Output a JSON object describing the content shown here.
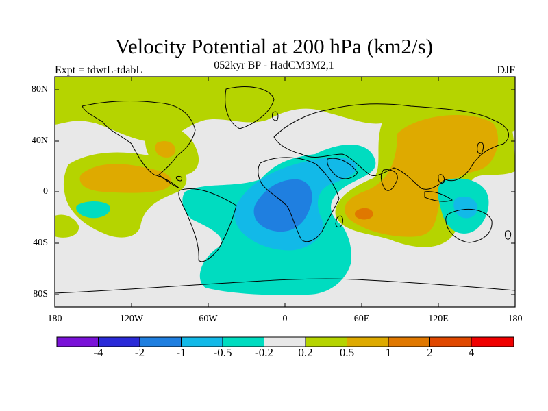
{
  "map": {
    "title": "Velocity Potential at 200 hPa (km2/s)",
    "subtitle": "052kyr BP - HadCM3M2,1",
    "experiment_label": "Expt = tdwtL-tdabL",
    "season_label": "DJF",
    "projection": "cylindrical equidistant",
    "extent": {
      "lon_min": -180,
      "lon_max": 180,
      "lat_min": -90,
      "lat_max": 90
    },
    "lat_ticks": [
      "80N",
      "40N",
      "0",
      "40S",
      "80S"
    ],
    "lon_ticks": [
      "180",
      "120W",
      "60W",
      "0",
      "60E",
      "120E",
      "180"
    ]
  },
  "colorbar": {
    "colors": [
      "#7a12d8",
      "#2a2ad8",
      "#1f7fe0",
      "#12b9e8",
      "#00dcc0",
      "#e8e8e8",
      "#b5d400",
      "#deaa00",
      "#e07800",
      "#e04800",
      "#f00000"
    ],
    "labels": [
      "-4",
      "-2",
      "-1",
      "-0.5",
      "-0.2",
      "0.2",
      "0.5",
      "1",
      "2",
      "4"
    ]
  },
  "palette": {
    "neutral": "#e8e8e8",
    "weak_pos": "#b5d400",
    "mod_pos": "#deaa00",
    "strong_pos": "#e07800",
    "weak_neg": "#00dcc0",
    "mod_neg": "#12b9e8",
    "strong_neg": "#1f7fe0"
  }
}
